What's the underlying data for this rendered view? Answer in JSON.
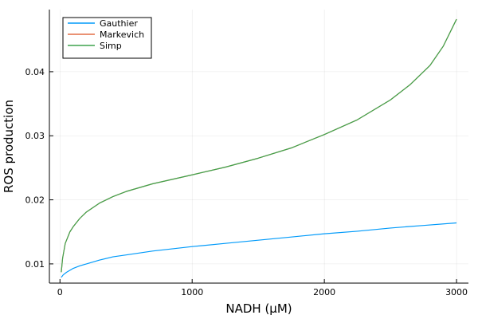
{
  "chart_data": {
    "type": "line",
    "title": "",
    "xlabel": "NADH (μM)",
    "ylabel": "ROS production",
    "xlim": [
      -80,
      3090
    ],
    "ylim": [
      0.007,
      0.0497
    ],
    "xticks": [
      0,
      1000,
      2000,
      3000
    ],
    "xtick_labels": [
      "0",
      "1000",
      "2000",
      "3000"
    ],
    "yticks": [
      0.01,
      0.02,
      0.03,
      0.04
    ],
    "ytick_labels": [
      "0.01",
      "0.02",
      "0.03",
      "0.04"
    ],
    "grid": true,
    "legend_position": "top-left",
    "series": [
      {
        "name": "Gauthier",
        "color": "#009AFA",
        "x": [
          10,
          25,
          50,
          100,
          150,
          200,
          300,
          400,
          500,
          700,
          1000,
          1250,
          1500,
          1750,
          2000,
          2250,
          2500,
          2750,
          3000
        ],
        "y": [
          0.0079,
          0.0083,
          0.0087,
          0.0093,
          0.0097,
          0.01,
          0.0106,
          0.0111,
          0.0114,
          0.012,
          0.0127,
          0.0132,
          0.0137,
          0.0142,
          0.0147,
          0.0151,
          0.0156,
          0.016,
          0.0164
        ]
      },
      {
        "name": "Markevich",
        "color": "#E36F47",
        "x": [
          10,
          20,
          40,
          75,
          100,
          150,
          200,
          300,
          400,
          500,
          700,
          1000,
          1250,
          1500,
          1750,
          2000,
          2250,
          2500,
          2650,
          2800,
          2900,
          3000
        ],
        "y": [
          0.0087,
          0.0109,
          0.0132,
          0.015,
          0.0158,
          0.0171,
          0.0181,
          0.0195,
          0.0205,
          0.0213,
          0.0225,
          0.0239,
          0.0251,
          0.0265,
          0.0281,
          0.0302,
          0.0325,
          0.0356,
          0.038,
          0.041,
          0.044,
          0.0482
        ]
      },
      {
        "name": "Simp",
        "color": "#3EA44E",
        "x": [
          10,
          20,
          40,
          75,
          100,
          150,
          200,
          300,
          400,
          500,
          700,
          1000,
          1250,
          1500,
          1750,
          2000,
          2250,
          2500,
          2650,
          2800,
          2900,
          3000
        ],
        "y": [
          0.0087,
          0.0109,
          0.0132,
          0.015,
          0.0158,
          0.0171,
          0.0181,
          0.0195,
          0.0205,
          0.0213,
          0.0225,
          0.0239,
          0.0251,
          0.0265,
          0.0281,
          0.0302,
          0.0325,
          0.0356,
          0.038,
          0.041,
          0.044,
          0.0482
        ]
      }
    ]
  }
}
